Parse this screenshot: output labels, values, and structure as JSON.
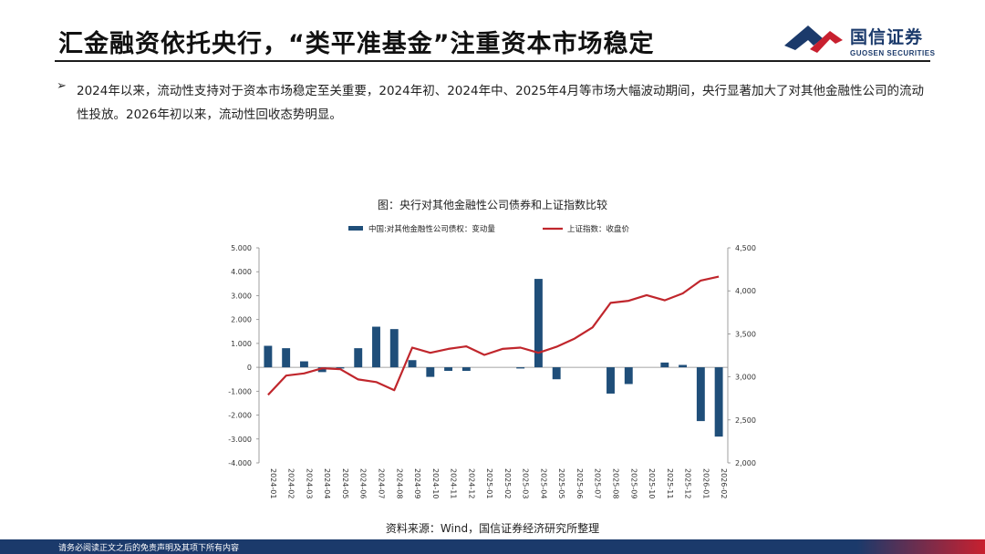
{
  "header": {
    "title": "汇金融资依托央行，“类平准基金”注重资本市场稳定",
    "logo_cn": "国信证券",
    "logo_en": "GUOSEN SECURITIES"
  },
  "bullet": {
    "marker": "➢",
    "text": "2024年以来，流动性支持对于资本市场稳定至关重要，2024年初、2024年中、2025年4月等市场大幅波动期间，央行显著加大了对其他金融性公司的流动性投放。2026年初以来，流动性回收态势明显。"
  },
  "figure": {
    "title": "图：央行对其他金融性公司债券和上证指数比较",
    "source": "资料来源：Wind，国信证券经济研究所整理"
  },
  "footer": {
    "disclaimer": "请务必阅读正文之后的免责声明及其项下所有内容"
  },
  "colors": {
    "bar": "#1f4e79",
    "line": "#c0262c",
    "brand_navy": "#1b3a6b",
    "brand_red": "#c8202f"
  },
  "chart_data": {
    "type": "bar+line",
    "title": "图：央行对其他金融性公司债券和上证指数比较",
    "categories": [
      "2024-01",
      "2024-02",
      "2024-03",
      "2024-04",
      "2024-05",
      "2024-06",
      "2024-07",
      "2024-08",
      "2024-09",
      "2024-10",
      "2024-11",
      "2024-12",
      "2025-01",
      "2025-02",
      "2025-03",
      "2025-04",
      "2025-05",
      "2025-06",
      "2025-07",
      "2025-08",
      "2025-09",
      "2025-10",
      "2025-11",
      "2025-12",
      "2026-01",
      "2026-02"
    ],
    "series": [
      {
        "name": "中国:对其他金融性公司债权：变动量",
        "type": "bar",
        "axis": "left",
        "values": [
          900,
          800,
          250,
          -200,
          -50,
          800,
          1700,
          1600,
          300,
          -400,
          -150,
          -150,
          0,
          0,
          -50,
          3700,
          -500,
          0,
          0,
          -1100,
          -700,
          0,
          200,
          100,
          -2250,
          -2900
        ]
      },
      {
        "name": "上证指数：收盘价",
        "type": "line",
        "axis": "right",
        "values": [
          2790,
          3015,
          3040,
          3100,
          3090,
          2970,
          2940,
          2845,
          3340,
          3280,
          3325,
          3355,
          3255,
          3325,
          3340,
          3280,
          3350,
          3445,
          3575,
          3860,
          3885,
          3950,
          3890,
          3970,
          4120,
          4165
        ]
      }
    ],
    "y_left": {
      "min": -4000,
      "max": 5000,
      "step": 1000,
      "tick_labels": [
        "-4.000",
        "-3.000",
        "-2.000",
        "-1.000",
        "0",
        "1.000",
        "2.000",
        "3.000",
        "4.000",
        "5.000"
      ]
    },
    "y_right": {
      "min": 2000,
      "max": 4500,
      "step": 500,
      "tick_labels": [
        "2,000",
        "2,500",
        "3,000",
        "3,500",
        "4,000",
        "4,500"
      ]
    },
    "grid": false,
    "legend_position": "top"
  }
}
